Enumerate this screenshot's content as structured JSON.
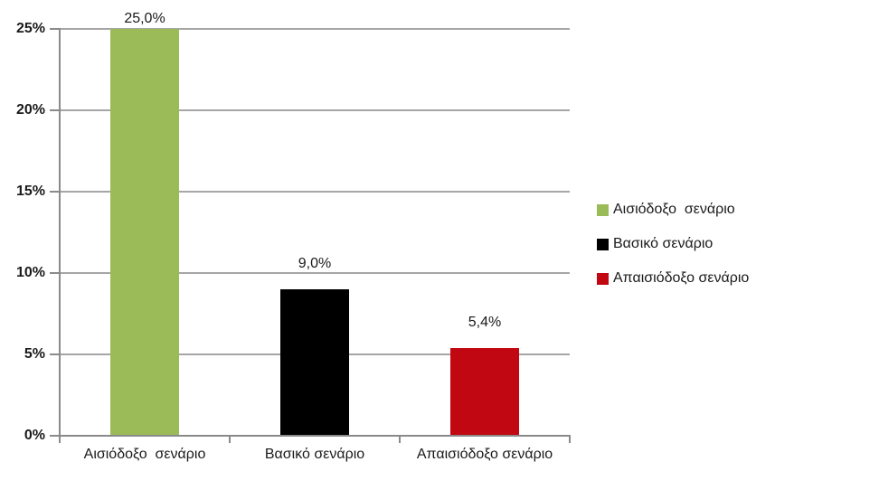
{
  "chart_data": {
    "type": "bar",
    "categories": [
      "Αισιόδοξο  σενάριο",
      "Βασικό σενάριο",
      "Απαισιόδοξο σενάριο"
    ],
    "values": [
      25.0,
      9.0,
      5.4
    ],
    "value_labels": [
      "25,0%",
      "9,0%",
      "5,4%"
    ],
    "bar_colors": [
      "#9BBB59",
      "#000000",
      "#C00712"
    ],
    "title": "",
    "xlabel": "",
    "ylabel": "",
    "ylim": [
      0,
      25
    ],
    "yticks": [
      {
        "value": 0,
        "label": "0%"
      },
      {
        "value": 5,
        "label": "5%"
      },
      {
        "value": 10,
        "label": "10%"
      },
      {
        "value": 15,
        "label": "15%"
      },
      {
        "value": 20,
        "label": "20%"
      },
      {
        "value": 25,
        "label": "25%"
      }
    ],
    "grid": true,
    "legend": {
      "position": "right",
      "entries": [
        {
          "label": "Αισιόδοξο  σενάριο",
          "color": "#9BBB59"
        },
        {
          "label": "Βασικό σενάριο",
          "color": "#000000"
        },
        {
          "label": "Απαισιόδοξο σενάριο",
          "color": "#C00712"
        }
      ]
    }
  },
  "colors": {
    "background": "#FFFFFF",
    "gridline": "#A6A6A6",
    "axis": "#8A8A8A",
    "text": "#1A1A1A"
  }
}
